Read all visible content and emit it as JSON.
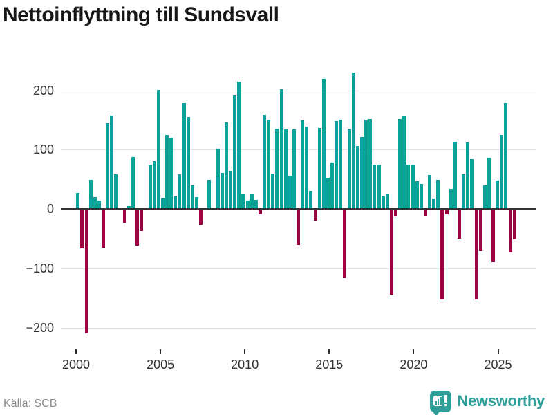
{
  "title": "Nettoinflyttning till Sundsvall",
  "source": "Källa: SCB",
  "brand": {
    "name": "Newsworthy",
    "color": "#2f9e99"
  },
  "colors": {
    "positive_bar": "#0ba29a",
    "negative_bar": "#9c0343",
    "axis_line": "#333333",
    "gridline": "#e3e3e3",
    "tick_label": "#333333",
    "title_text": "#171717",
    "source_text": "#8a8a8a"
  },
  "chart_data": {
    "type": "bar",
    "title": "Nettoinflyttning till Sundsvall",
    "xlabel": "",
    "ylabel": "",
    "unit": "persons per quarter (net migration)",
    "ylim": [
      -230,
      245
    ],
    "grid": true,
    "yticks": [
      200,
      100,
      0,
      -100,
      -200
    ],
    "xticks": [
      2000,
      2005,
      2010,
      2015,
      2020,
      2025
    ],
    "period": "quarterly",
    "years": [
      {
        "year": 2000,
        "q": [
          26,
          -64,
          -207,
          48
        ]
      },
      {
        "year": 2001,
        "q": [
          19,
          13,
          -63,
          143
        ]
      },
      {
        "year": 2002,
        "q": [
          156,
          57,
          0,
          -21
        ]
      },
      {
        "year": 2003,
        "q": [
          4,
          86,
          -60,
          -35
        ]
      },
      {
        "year": 2004,
        "q": [
          0,
          74,
          79,
          199
        ]
      },
      {
        "year": 2005,
        "q": [
          17,
          124,
          119,
          20
        ]
      },
      {
        "year": 2006,
        "q": [
          57,
          177,
          154,
          38
        ]
      },
      {
        "year": 2007,
        "q": [
          19,
          -25,
          0,
          48
        ]
      },
      {
        "year": 2008,
        "q": [
          0,
          100,
          60,
          145
        ]
      },
      {
        "year": 2009,
        "q": [
          63,
          190,
          213,
          24
        ]
      },
      {
        "year": 2010,
        "q": [
          13,
          24,
          14,
          -7
        ]
      },
      {
        "year": 2011,
        "q": [
          158,
          149,
          58,
          134
        ]
      },
      {
        "year": 2012,
        "q": [
          201,
          133,
          55,
          133
        ]
      },
      {
        "year": 2013,
        "q": [
          -58,
          148,
          138,
          29
        ]
      },
      {
        "year": 2014,
        "q": [
          -18,
          135,
          218,
          51
        ]
      },
      {
        "year": 2015,
        "q": [
          77,
          147,
          149,
          -114
        ]
      },
      {
        "year": 2016,
        "q": [
          133,
          228,
          105,
          120
        ]
      },
      {
        "year": 2017,
        "q": [
          149,
          151,
          74,
          74
        ]
      },
      {
        "year": 2018,
        "q": [
          20,
          25,
          -142,
          -11
        ]
      },
      {
        "year": 2019,
        "q": [
          150,
          155,
          74,
          73
        ]
      },
      {
        "year": 2020,
        "q": [
          45,
          41,
          -9,
          56
        ]
      },
      {
        "year": 2021,
        "q": [
          16,
          48,
          -151,
          -7
        ]
      },
      {
        "year": 2022,
        "q": [
          33,
          112,
          -48,
          57
        ]
      },
      {
        "year": 2023,
        "q": [
          111,
          83,
          -151,
          -69
        ]
      },
      {
        "year": 2024,
        "q": [
          38,
          85,
          -88,
          47
        ]
      },
      {
        "year": 2025,
        "q": [
          124,
          177,
          -71,
          -49
        ]
      }
    ]
  }
}
